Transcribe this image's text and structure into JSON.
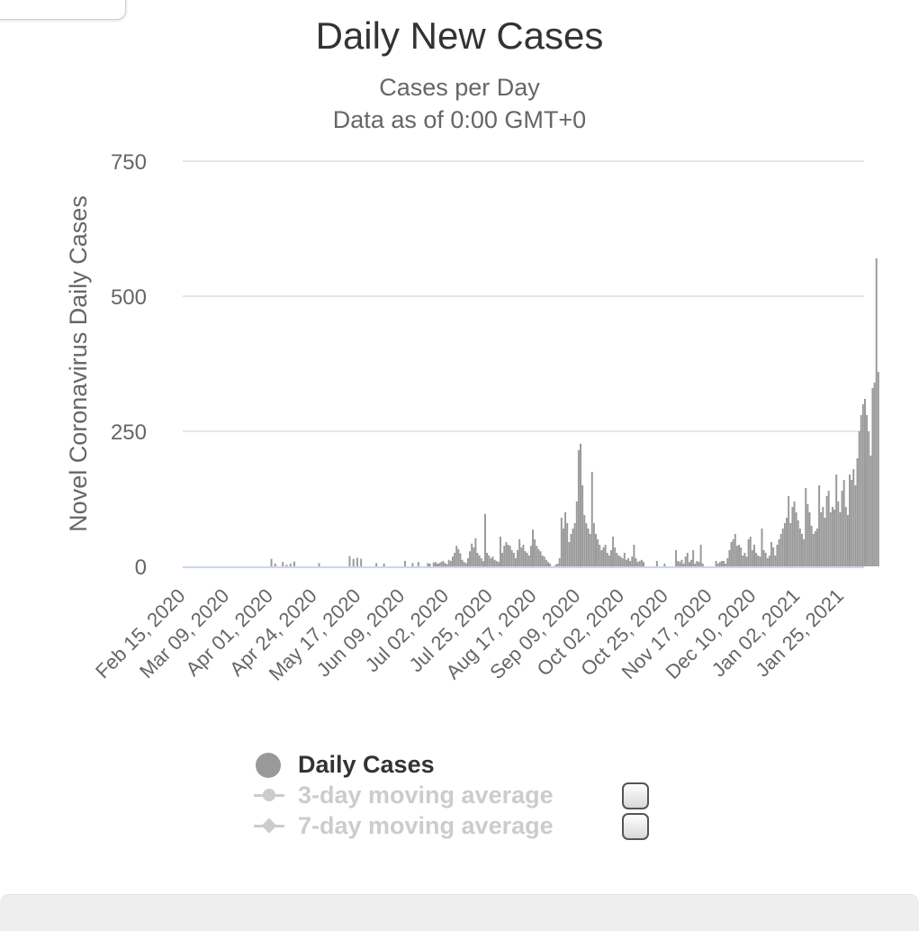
{
  "chart_data": {
    "type": "bar",
    "title": "Daily New Cases",
    "subtitles": [
      "Cases per Day",
      "Data as of 0:00 GMT+0"
    ],
    "ylabel": "Novel Coronavirus Daily Cases",
    "ylim": [
      0,
      750
    ],
    "yticks": [
      0,
      250,
      500,
      750
    ],
    "grid": true,
    "x_start": "2020-02-15",
    "x_end": "2021-02-06",
    "xtick_labels": [
      "Feb 15, 2020",
      "Mar 09, 2020",
      "Apr 01, 2020",
      "Apr 24, 2020",
      "May 17, 2020",
      "Jun 09, 2020",
      "Jul 02, 2020",
      "Jul 25, 2020",
      "Aug 17, 2020",
      "Sep 09, 2020",
      "Oct 02, 2020",
      "Oct 25, 2020",
      "Nov 17, 2020",
      "Dec 10, 2020",
      "Jan 02, 2021",
      "Jan 25, 2021"
    ],
    "series": [
      {
        "name": "Daily Cases",
        "color": "#999999",
        "values": [
          0,
          0,
          0,
          0,
          0,
          0,
          0,
          0,
          0,
          0,
          0,
          0,
          0,
          0,
          0,
          0,
          0,
          0,
          0,
          0,
          0,
          0,
          0,
          0,
          0,
          0,
          0,
          0,
          0,
          0,
          0,
          0,
          0,
          0,
          0,
          0,
          0,
          0,
          0,
          0,
          0,
          0,
          0,
          0,
          0,
          0,
          14,
          0,
          5,
          0,
          0,
          0,
          8,
          0,
          3,
          0,
          5,
          0,
          9,
          0,
          0,
          0,
          0,
          0,
          0,
          0,
          0,
          0,
          0,
          0,
          0,
          6,
          0,
          0,
          0,
          0,
          0,
          0,
          0,
          0,
          0,
          0,
          0,
          0,
          0,
          0,
          0,
          19,
          0,
          14,
          0,
          16,
          0,
          14,
          0,
          0,
          0,
          0,
          0,
          0,
          0,
          6,
          0,
          0,
          0,
          5,
          0,
          0,
          0,
          0,
          0,
          0,
          0,
          0,
          0,
          0,
          10,
          0,
          0,
          0,
          6,
          0,
          0,
          8,
          0,
          0,
          0,
          0,
          6,
          5,
          0,
          7,
          8,
          5,
          6,
          8,
          10,
          6,
          4,
          12,
          10,
          18,
          25,
          38,
          32,
          24,
          12,
          8,
          6,
          15,
          28,
          42,
          35,
          52,
          25,
          20,
          15,
          10,
          97,
          25,
          20,
          15,
          18,
          12,
          10,
          8,
          55,
          25,
          38,
          45,
          40,
          38,
          30,
          25,
          15,
          30,
          50,
          35,
          40,
          28,
          25,
          20,
          38,
          68,
          50,
          38,
          32,
          28,
          20,
          18,
          12,
          8,
          5,
          0,
          0,
          3,
          5,
          15,
          90,
          70,
          100,
          80,
          45,
          60,
          70,
          80,
          120,
          215,
          227,
          150,
          95,
          80,
          70,
          60,
          175,
          80,
          60,
          50,
          40,
          30,
          35,
          40,
          25,
          20,
          30,
          55,
          35,
          25,
          20,
          18,
          15,
          25,
          12,
          15,
          10,
          18,
          40,
          15,
          8,
          10,
          12,
          8,
          0,
          0,
          0,
          0,
          0,
          0,
          10,
          0,
          0,
          0,
          5,
          0,
          0,
          0,
          0,
          0,
          30,
          10,
          8,
          12,
          5,
          18,
          25,
          8,
          12,
          30,
          5,
          10,
          8,
          40,
          5,
          0,
          0,
          0,
          0,
          0,
          0,
          10,
          5,
          8,
          10,
          10,
          5,
          15,
          30,
          45,
          50,
          60,
          38,
          40,
          35,
          20,
          25,
          18,
          50,
          55,
          30,
          40,
          25,
          20,
          18,
          70,
          30,
          25,
          15,
          20,
          45,
          35,
          20,
          40,
          50,
          60,
          70,
          80,
          90,
          130,
          80,
          110,
          120,
          100,
          85,
          70,
          60,
          50,
          145,
          115,
          100,
          75,
          60,
          65,
          70,
          150,
          100,
          110,
          90,
          130,
          140,
          100,
          110,
          105,
          170,
          120,
          100,
          140,
          160,
          110,
          95,
          170,
          160,
          180,
          150,
          200,
          250,
          280,
          300,
          310,
          280,
          250,
          205,
          330,
          340,
          570,
          360
        ]
      },
      {
        "name": "3-day moving average",
        "visible": false
      },
      {
        "name": "7-day moving average",
        "visible": false
      }
    ]
  },
  "legend": [
    {
      "label": "Daily Cases"
    },
    {
      "label": "3-day moving average"
    },
    {
      "label": "7-day moving average"
    }
  ]
}
